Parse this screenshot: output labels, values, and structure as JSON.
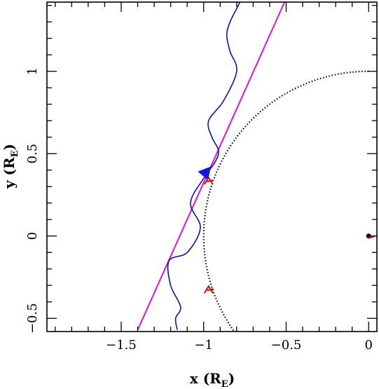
{
  "chart_data": {
    "type": "line",
    "xlabel": {
      "main": "x (R",
      "sub": "E",
      "close": ")"
    },
    "ylabel": {
      "main": "y (R",
      "sub": "E",
      "close": ")"
    },
    "xlim": [
      -1.95,
      0.05
    ],
    "ylim": [
      -0.58,
      1.42
    ],
    "x_ticks": [
      -1.5,
      -1,
      -0.5,
      0
    ],
    "x_tick_labels": [
      "−1.5",
      "−1",
      "−0.5",
      "0"
    ],
    "y_ticks": [
      -0.5,
      0,
      0.5,
      1
    ],
    "y_tick_labels": [
      "−0.5",
      "0",
      "0.5",
      "1"
    ],
    "grid": false,
    "colors": {
      "trajectory": "#1010b0",
      "line": "#dd10dd",
      "circle": "#000000",
      "markers": "#cc1010",
      "arrow": "#1414e0",
      "earth": "#000000"
    },
    "series": [
      {
        "style": "dotted",
        "center": [
          0,
          0
        ],
        "radius": 1.0,
        "theta_range_deg": [
          90,
          235
        ]
      },
      {
        "style": "solid",
        "x": [
          -1.4,
          -0.51
        ],
        "y": [
          -0.57,
          1.42
        ]
      },
      {
        "style": "wavy",
        "y": [
          -0.57,
          -0.5,
          -0.43,
          -0.3,
          -0.15,
          -0.1,
          0.05,
          0.2,
          0.35,
          0.45,
          0.52,
          0.6,
          0.7,
          0.82,
          1.0,
          1.12,
          1.22,
          1.3,
          1.38,
          1.42
        ],
        "x": [
          -1.16,
          -1.17,
          -1.14,
          -1.2,
          -1.21,
          -1.1,
          -1.02,
          -1.08,
          -1.0,
          -0.93,
          -0.91,
          -0.95,
          -0.97,
          -0.88,
          -0.8,
          -0.84,
          -0.86,
          -0.84,
          -0.8,
          -0.78
        ]
      }
    ],
    "markers": [
      {
        "x": -0.97,
        "y": 0.33
      },
      {
        "x": -0.97,
        "y": -0.33
      },
      {
        "x": 0.0,
        "y": 0.0
      }
    ],
    "arrow": {
      "x": -1.0,
      "y": 0.37,
      "dx": 0.05,
      "dy": 0.06
    }
  }
}
